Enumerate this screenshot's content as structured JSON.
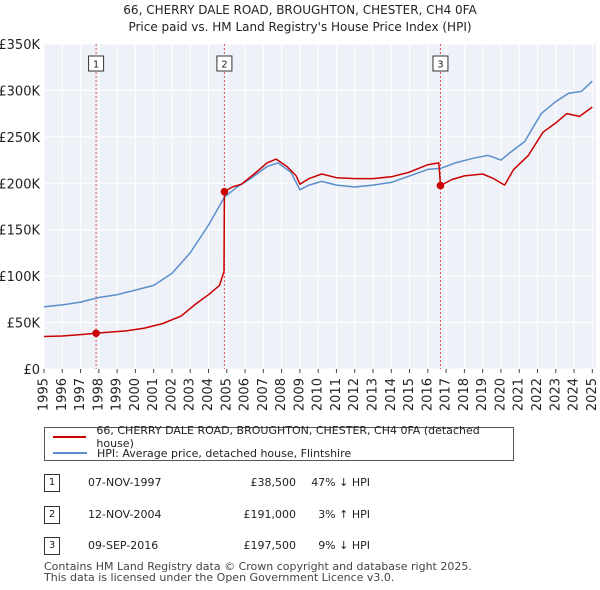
{
  "chart_data": {
    "type": "line",
    "title": "66, CHERRY DALE ROAD, BROUGHTON, CHESTER, CH4 0FA",
    "subtitle": "Price paid vs. HM Land Registry's House Price Index (HPI)",
    "xlabel": "",
    "ylabel": "",
    "xlim": [
      1995.0,
      2025.2
    ],
    "ylim": [
      0,
      350000
    ],
    "x_ticks": [
      "1995",
      "1996",
      "1997",
      "1998",
      "1999",
      "2000",
      "2001",
      "2002",
      "2003",
      "2004",
      "2005",
      "2006",
      "2007",
      "2008",
      "2009",
      "2010",
      "2011",
      "2012",
      "2013",
      "2014",
      "2015",
      "2016",
      "2017",
      "2018",
      "2019",
      "2020",
      "2021",
      "2022",
      "2023",
      "2024",
      "2025"
    ],
    "y_ticks": [
      {
        "value": 0,
        "label": "£0"
      },
      {
        "value": 50000,
        "label": "£50K"
      },
      {
        "value": 100000,
        "label": "£100K"
      },
      {
        "value": 150000,
        "label": "£150K"
      },
      {
        "value": 200000,
        "label": "£200K"
      },
      {
        "value": 250000,
        "label": "£250K"
      },
      {
        "value": 300000,
        "label": "£300K"
      },
      {
        "value": 350000,
        "label": "£350K"
      }
    ],
    "grid": true,
    "series": [
      {
        "name": "66, CHERRY DALE ROAD, BROUGHTON, CHESTER, CH4 0FA (detached house)",
        "color": "#cc0000",
        "points": [
          [
            1995.0,
            35000
          ],
          [
            1996.0,
            35500
          ],
          [
            1997.0,
            37000
          ],
          [
            1997.85,
            38500
          ],
          [
            1998.5,
            39500
          ],
          [
            1999.5,
            41000
          ],
          [
            2000.5,
            44000
          ],
          [
            2001.5,
            49000
          ],
          [
            2002.5,
            57000
          ],
          [
            2003.3,
            70000
          ],
          [
            2004.0,
            80000
          ],
          [
            2004.6,
            90000
          ],
          [
            2004.85,
            105000
          ],
          [
            2004.87,
            191000
          ],
          [
            2005.3,
            196000
          ],
          [
            2005.8,
            199000
          ],
          [
            2006.5,
            210000
          ],
          [
            2007.2,
            222000
          ],
          [
            2007.7,
            226000
          ],
          [
            2008.3,
            218000
          ],
          [
            2008.8,
            208000
          ],
          [
            2009.0,
            199000
          ],
          [
            2009.5,
            205000
          ],
          [
            2010.2,
            210000
          ],
          [
            2011.0,
            206000
          ],
          [
            2012.0,
            205000
          ],
          [
            2013.0,
            205000
          ],
          [
            2014.0,
            207000
          ],
          [
            2015.0,
            212000
          ],
          [
            2016.0,
            220000
          ],
          [
            2016.6,
            222000
          ],
          [
            2016.69,
            197500
          ],
          [
            2017.3,
            204000
          ],
          [
            2018.0,
            208000
          ],
          [
            2019.0,
            210000
          ],
          [
            2019.6,
            205000
          ],
          [
            2020.2,
            198000
          ],
          [
            2020.7,
            215000
          ],
          [
            2021.5,
            230000
          ],
          [
            2022.3,
            255000
          ],
          [
            2023.0,
            265000
          ],
          [
            2023.6,
            275000
          ],
          [
            2024.3,
            272000
          ],
          [
            2025.0,
            282000
          ]
        ]
      },
      {
        "name": "HPI: Average price, detached house, Flintshire",
        "color": "#5b8fcc",
        "points": [
          [
            1995.0,
            67000
          ],
          [
            1996.0,
            69000
          ],
          [
            1997.0,
            72000
          ],
          [
            1998.0,
            77000
          ],
          [
            1999.0,
            80000
          ],
          [
            2000.0,
            85000
          ],
          [
            2001.0,
            90000
          ],
          [
            2002.0,
            103000
          ],
          [
            2003.0,
            125000
          ],
          [
            2004.0,
            155000
          ],
          [
            2004.87,
            185000
          ],
          [
            2005.5,
            195000
          ],
          [
            2006.3,
            205000
          ],
          [
            2007.2,
            218000
          ],
          [
            2007.8,
            222000
          ],
          [
            2008.5,
            212000
          ],
          [
            2009.0,
            193000
          ],
          [
            2009.5,
            198000
          ],
          [
            2010.2,
            202000
          ],
          [
            2011.0,
            198000
          ],
          [
            2012.0,
            196000
          ],
          [
            2013.0,
            198000
          ],
          [
            2014.0,
            201000
          ],
          [
            2015.0,
            208000
          ],
          [
            2016.0,
            215000
          ],
          [
            2016.69,
            216000
          ],
          [
            2017.5,
            222000
          ],
          [
            2018.5,
            227000
          ],
          [
            2019.3,
            230000
          ],
          [
            2020.0,
            225000
          ],
          [
            2020.5,
            233000
          ],
          [
            2021.3,
            245000
          ],
          [
            2022.2,
            275000
          ],
          [
            2023.0,
            288000
          ],
          [
            2023.7,
            297000
          ],
          [
            2024.4,
            299000
          ],
          [
            2025.0,
            310000
          ]
        ]
      }
    ],
    "sales": [
      {
        "id": "1",
        "x": 1997.85,
        "value": 38500,
        "date": "07-NOV-1997",
        "price": "£38,500",
        "hpi": "47% ↓ HPI"
      },
      {
        "id": "2",
        "x": 2004.87,
        "value": 191000,
        "date": "12-NOV-2004",
        "price": "£191,000",
        "hpi": "3% ↑ HPI"
      },
      {
        "id": "3",
        "x": 2016.69,
        "value": 197500,
        "date": "09-SEP-2016",
        "price": "£197,500",
        "hpi": "9% ↓ HPI"
      }
    ]
  },
  "legend": {
    "red_label": "66, CHERRY DALE ROAD, BROUGHTON, CHESTER, CH4 0FA (detached house)",
    "blue_label": "HPI: Average price, detached house, Flintshire"
  },
  "footer": {
    "line1": "Contains HM Land Registry data © Crown copyright and database right 2025.",
    "line2": "This data is licensed under the Open Government Licence v3.0."
  }
}
